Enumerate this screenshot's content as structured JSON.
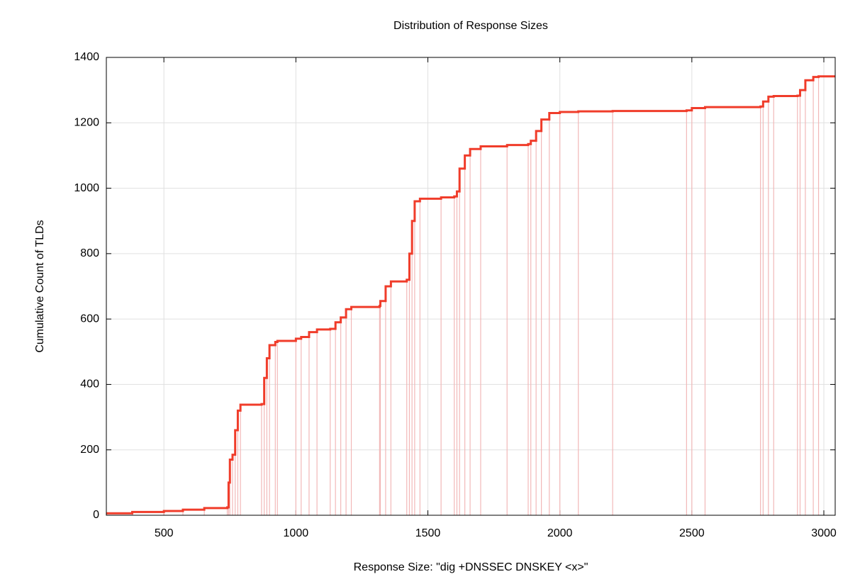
{
  "chart_data": {
    "type": "step",
    "title": "Distribution of Response Sizes",
    "x_label": "Response Size: \"dig +DNSSEC DNSKEY <x>\"",
    "y_label": "Cumulative Count of TLDs",
    "x": [
      282,
      380,
      500,
      572,
      653,
      740,
      745,
      750,
      760,
      770,
      780,
      790,
      870,
      880,
      890,
      900,
      922,
      930,
      1000,
      1020,
      1050,
      1080,
      1130,
      1150,
      1170,
      1190,
      1210,
      1317,
      1320,
      1340,
      1360,
      1420,
      1430,
      1440,
      1450,
      1470,
      1550,
      1600,
      1610,
      1620,
      1640,
      1660,
      1700,
      1800,
      1880,
      1890,
      1910,
      1930,
      1960,
      2000,
      2070,
      2200,
      2480,
      2500,
      2550,
      2760,
      2770,
      2790,
      2810,
      2900,
      2910,
      2930,
      2960,
      2980
    ],
    "series": [
      {
        "name": "Cumulative Count of TLDs",
        "color": "#f03c2a",
        "impulse_color": "#f2b8b8",
        "values": [
          6,
          10,
          13,
          17,
          22,
          24,
          100,
          170,
          185,
          260,
          320,
          338,
          340,
          420,
          480,
          520,
          530,
          533,
          540,
          545,
          560,
          568,
          570,
          590,
          605,
          630,
          637,
          640,
          655,
          700,
          715,
          720,
          800,
          900,
          960,
          968,
          972,
          975,
          990,
          1060,
          1100,
          1120,
          1128,
          1132,
          1135,
          1145,
          1175,
          1210,
          1230,
          1233,
          1235,
          1236,
          1238,
          1245,
          1248,
          1250,
          1265,
          1280,
          1282,
          1283,
          1300,
          1330,
          1340,
          1342
        ]
      }
    ],
    "xlim": [
      282,
      3043
    ],
    "ylim": [
      0,
      1400
    ],
    "xticks": [
      500,
      1000,
      1500,
      2000,
      2500,
      3000
    ],
    "yticks": [
      0,
      200,
      400,
      600,
      800,
      1000,
      1200,
      1400
    ],
    "grid": true
  }
}
